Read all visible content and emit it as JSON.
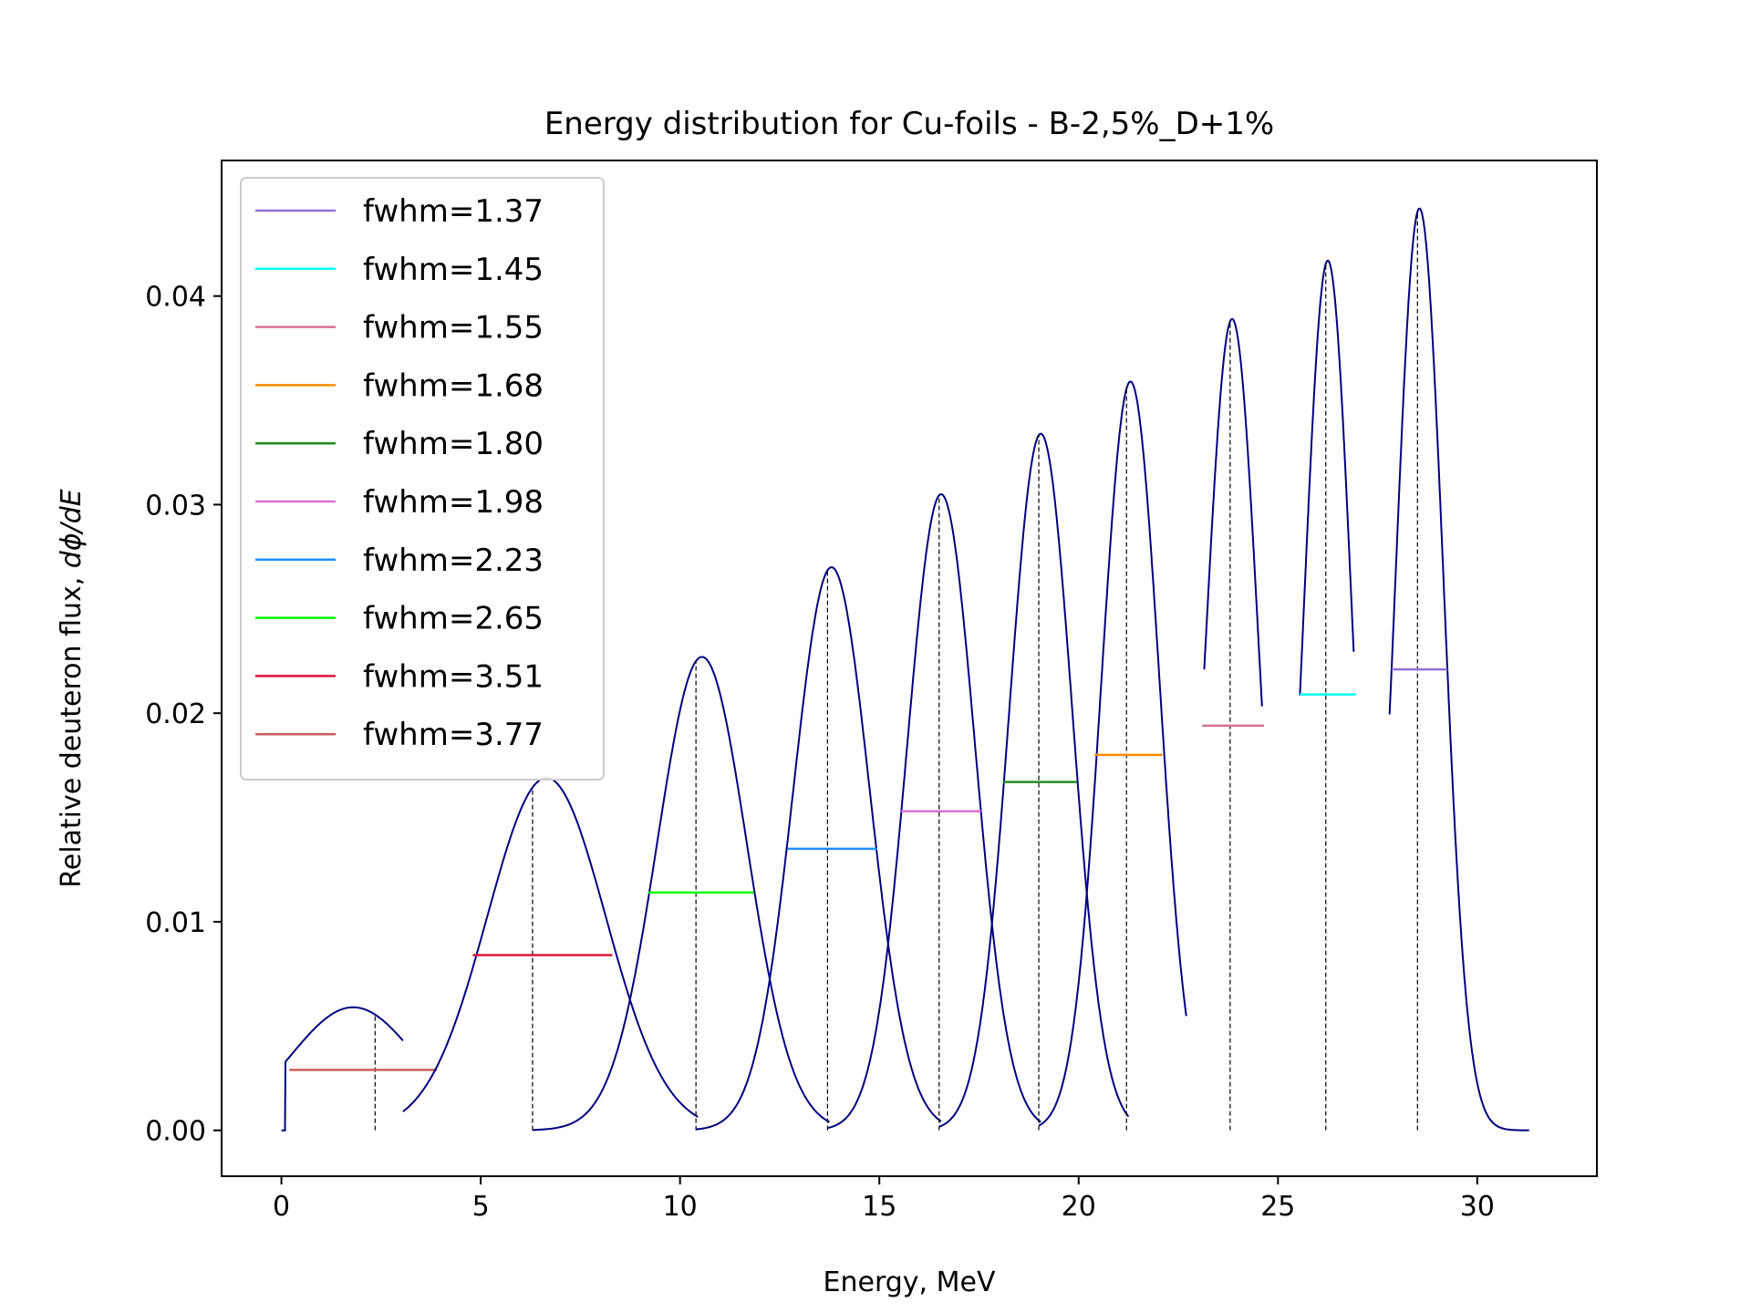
{
  "chart_data": {
    "type": "line",
    "title": "Energy distribution for Cu-foils - B-2,5%_D+1%",
    "xlabel": "Energy, MeV",
    "ylabel_text": "Relative deuteron flux, ",
    "ylabel_math": "dϕ/dE",
    "xlim": [
      -1.5,
      33
    ],
    "ylim": [
      -0.0022,
      0.0465
    ],
    "xticks": [
      0,
      5,
      10,
      15,
      20,
      25,
      30
    ],
    "yticks": [
      0.0,
      0.01,
      0.02,
      0.03,
      0.04
    ],
    "ytick_labels": [
      "0.00",
      "0.01",
      "0.02",
      "0.03",
      "0.04"
    ],
    "grid": false,
    "legend_position": "upper-left",
    "curve_color": "#000080",
    "peaks": [
      {
        "name": "fwhm=3.77",
        "color": "#cd5c5c",
        "mean": 2.35,
        "peak": 1.8,
        "height": 0.0059,
        "xmin": 0.0,
        "xmax": 3.05,
        "fwhm_left": 0.2,
        "fwhm_right": 3.9,
        "half": 0.0029
      },
      {
        "name": "fwhm=3.51",
        "color": "#dc143c",
        "mean": 6.3,
        "peak": 6.65,
        "height": 0.0169,
        "xmin": 3.05,
        "xmax": 10.45,
        "fwhm_left": 4.8,
        "fwhm_right": 8.3,
        "half": 0.0084
      },
      {
        "name": "fwhm=2.65",
        "color": "#00ff00",
        "mean": 10.4,
        "peak": 10.55,
        "height": 0.0227,
        "xmin": 6.3,
        "xmax": 13.75,
        "fwhm_left": 9.2,
        "fwhm_right": 11.85,
        "half": 0.0114
      },
      {
        "name": "fwhm=2.23",
        "color": "#1e90ff",
        "mean": 13.7,
        "peak": 13.8,
        "height": 0.027,
        "xmin": 10.4,
        "xmax": 16.55,
        "fwhm_left": 12.7,
        "fwhm_right": 14.95,
        "half": 0.0135
      },
      {
        "name": "fwhm=1.98",
        "color": "#da70d6",
        "mean": 16.5,
        "peak": 16.55,
        "height": 0.0305,
        "xmin": 13.7,
        "xmax": 19.05,
        "fwhm_left": 15.55,
        "fwhm_right": 17.55,
        "half": 0.0153
      },
      {
        "name": "fwhm=1.80",
        "color": "#228b22",
        "mean": 19.0,
        "peak": 19.05,
        "height": 0.0334,
        "xmin": 16.5,
        "xmax": 21.25,
        "fwhm_left": 18.1,
        "fwhm_right": 19.95,
        "half": 0.0167
      },
      {
        "name": "fwhm=1.68",
        "color": "#ff8c00",
        "mean": 21.2,
        "peak": 21.3,
        "height": 0.0359,
        "xmin": 19.0,
        "xmax": 22.7,
        "fwhm_left": 20.4,
        "fwhm_right": 22.1,
        "half": 0.018
      },
      {
        "name": "fwhm=1.55",
        "color": "#db7093",
        "mean": 23.8,
        "peak": 23.85,
        "height": 0.0389,
        "xmin": 23.15,
        "xmax": 24.6,
        "fwhm_left": 23.1,
        "fwhm_right": 24.65,
        "half": 0.0194
      },
      {
        "name": "fwhm=1.45",
        "color": "#00ffff",
        "mean": 26.2,
        "peak": 26.25,
        "height": 0.0417,
        "xmin": 25.55,
        "xmax": 26.9,
        "fwhm_left": 25.55,
        "fwhm_right": 26.95,
        "half": 0.0209
      },
      {
        "name": "fwhm=1.37",
        "color": "#9370db",
        "mean": 28.5,
        "peak": 28.55,
        "height": 0.0442,
        "xmin": 27.8,
        "xmax": 31.3,
        "fwhm_left": 27.85,
        "fwhm_right": 29.25,
        "half": 0.0221
      }
    ],
    "legend_order": [
      "fwhm=1.37",
      "fwhm=1.45",
      "fwhm=1.55",
      "fwhm=1.68",
      "fwhm=1.80",
      "fwhm=1.98",
      "fwhm=2.23",
      "fwhm=2.65",
      "fwhm=3.51",
      "fwhm=3.77"
    ]
  }
}
